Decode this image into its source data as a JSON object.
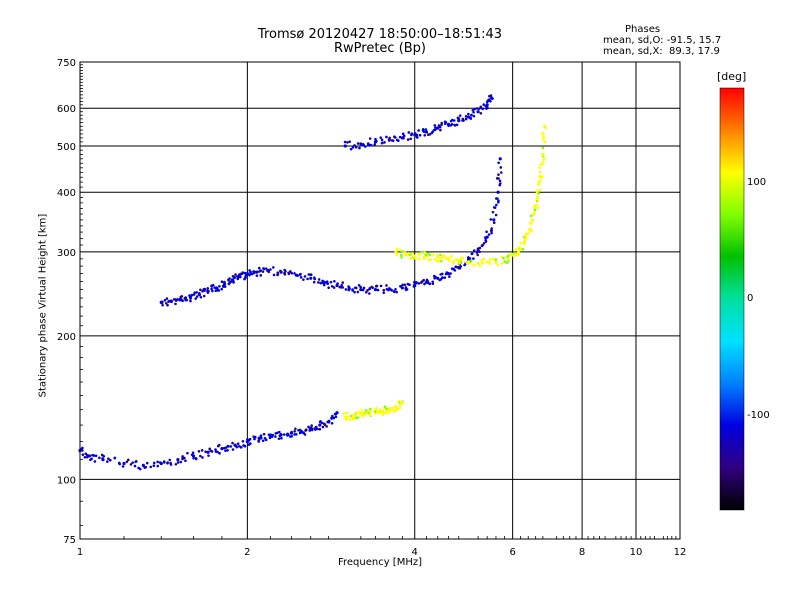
{
  "title_line1": "Tromsø 20120427 18:50:00–18:51:43",
  "title_line2": "RwPretec (Bp)",
  "phases": {
    "heading": "Phases",
    "line1": "mean, sd,O: -91.5, 15.7",
    "line2": "mean, sd,X:  89.3, 17.9"
  },
  "colorbar": {
    "unit": "[deg]",
    "tick_labels": [
      "100",
      "0",
      "-100"
    ],
    "colors": [
      "#ff0000",
      "#ff8000",
      "#ffff00",
      "#80ff00",
      "#00c000",
      "#00e0a0",
      "#00e0ff",
      "#0080ff",
      "#0000e0",
      "#300080",
      "#000000"
    ]
  },
  "chart_data": {
    "type": "scatter",
    "title": "Tromsø 20120427 18:50:00–18:51:43",
    "subtitle": "RwPretec (Bp)",
    "xlabel": "Frequency [MHz]",
    "ylabel": "Stationary phase Virtual Height [km]",
    "x_scale": "log",
    "y_scale": "log",
    "xlim": [
      1,
      12
    ],
    "ylim": [
      75,
      750
    ],
    "grid": true,
    "x_ticks": [
      1,
      2,
      4,
      6,
      8,
      10,
      12
    ],
    "x_tick_labels": [
      "1",
      "2",
      "4",
      "6",
      "8",
      "10",
      "12"
    ],
    "y_ticks": [
      75,
      100,
      200,
      300,
      400,
      500,
      600,
      750
    ],
    "y_tick_labels": [
      "75",
      "100",
      "200",
      "300",
      "400",
      "500",
      "600",
      "750"
    ],
    "colorbar": {
      "label": "[deg]",
      "range": [
        -180,
        180
      ],
      "ticks": [
        100,
        0,
        -100
      ]
    },
    "series": [
      {
        "trace": "O-mode F-layer lower",
        "phase": -100,
        "x": [
          1.4,
          1.46,
          1.52,
          1.58,
          1.64,
          1.7,
          1.76,
          1.82,
          1.88,
          1.94,
          2.0,
          2.08,
          2.18,
          2.3,
          2.45,
          2.6,
          2.75,
          2.9,
          3.05,
          3.2,
          3.4,
          3.6,
          3.8,
          4.0,
          4.2,
          4.4,
          4.6,
          4.8,
          5.0,
          5.2,
          5.4,
          5.55,
          5.65,
          5.7
        ],
        "y": [
          235,
          236,
          238,
          241,
          244,
          248,
          252,
          257,
          262,
          266,
          270,
          272,
          274,
          272,
          268,
          264,
          259,
          255,
          251,
          250,
          250,
          251,
          252,
          255,
          259,
          264,
          270,
          278,
          288,
          302,
          322,
          350,
          400,
          470
        ]
      },
      {
        "trace": "X-mode F-layer",
        "phase": 100,
        "x": [
          3.7,
          3.85,
          4.0,
          4.2,
          4.4,
          4.6,
          4.8,
          5.0,
          5.3,
          5.6,
          5.9,
          6.15,
          6.3,
          6.45,
          6.55,
          6.65,
          6.75,
          6.8,
          6.85
        ],
        "y": [
          300,
          296,
          294,
          294,
          292,
          290,
          288,
          286,
          284,
          285,
          290,
          300,
          315,
          335,
          360,
          390,
          430,
          480,
          550
        ]
      },
      {
        "trace": "O-mode F-layer upper",
        "phase": -100,
        "x": [
          3.0,
          3.2,
          3.4,
          3.6,
          3.8,
          4.0,
          4.2,
          4.4,
          4.6,
          4.8,
          5.0,
          5.2,
          5.4,
          5.5
        ],
        "y": [
          500,
          505,
          510,
          515,
          520,
          528,
          535,
          545,
          555,
          565,
          575,
          590,
          610,
          630
        ]
      },
      {
        "trace": "O-mode E/Es lower",
        "phase": -100,
        "x": [
          1.0,
          1.04,
          1.1,
          1.2,
          1.3,
          1.4,
          1.5,
          1.6,
          1.7,
          1.8,
          1.9,
          2.0,
          2.1,
          2.2,
          2.3,
          2.4,
          2.5,
          2.6,
          2.7,
          2.8,
          2.9
        ],
        "y": [
          115,
          112,
          110,
          108,
          107,
          108,
          110,
          112,
          114,
          116,
          118,
          120,
          122,
          123,
          124,
          125,
          126,
          128,
          130,
          132,
          138
        ]
      },
      {
        "trace": "X-mode E lower",
        "phase": 100,
        "x": [
          3.0,
          3.1,
          3.2,
          3.3,
          3.4,
          3.5,
          3.6,
          3.7,
          3.8
        ],
        "y": [
          135,
          136,
          137,
          138,
          138,
          139,
          140,
          142,
          145
        ]
      }
    ]
  }
}
